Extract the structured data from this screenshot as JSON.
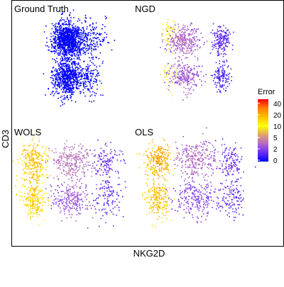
{
  "chart_data": {
    "type": "scatter",
    "xlabel": "NKG2D",
    "ylabel": "CD3",
    "panels": [
      {
        "title": "Ground Truth",
        "clusters": [
          {
            "x": 0.18,
            "y": 0.72,
            "n": 1000,
            "error": 0
          },
          {
            "x": 0.47,
            "y": 0.72,
            "n": 200,
            "error": 0
          },
          {
            "x": 0.18,
            "y": 0.26,
            "n": 700,
            "error": 0
          },
          {
            "x": 0.47,
            "y": 0.25,
            "n": 150,
            "error": 0
          }
        ]
      },
      {
        "title": "NGD",
        "clusters": [
          {
            "x": 0.12,
            "y": 0.78,
            "n": 60,
            "error": 14
          },
          {
            "x": 0.28,
            "y": 0.7,
            "n": 300,
            "error": 2.5
          },
          {
            "x": 0.72,
            "y": 0.7,
            "n": 180,
            "error": 0.8
          },
          {
            "x": 0.1,
            "y": 0.3,
            "n": 40,
            "error": 9
          },
          {
            "x": 0.3,
            "y": 0.28,
            "n": 220,
            "error": 2
          },
          {
            "x": 0.72,
            "y": 0.27,
            "n": 130,
            "error": 0.6
          }
        ]
      },
      {
        "title": "WOLS",
        "clusters": [
          {
            "x": 0.12,
            "y": 0.72,
            "n": 260,
            "error": 18
          },
          {
            "x": 0.48,
            "y": 0.72,
            "n": 260,
            "error": 3
          },
          {
            "x": 0.82,
            "y": 0.72,
            "n": 130,
            "error": 1
          },
          {
            "x": 0.12,
            "y": 0.28,
            "n": 220,
            "error": 16
          },
          {
            "x": 0.48,
            "y": 0.28,
            "n": 240,
            "error": 2
          },
          {
            "x": 0.82,
            "y": 0.28,
            "n": 110,
            "error": 0.8
          }
        ]
      },
      {
        "title": "OLS",
        "clusters": [
          {
            "x": 0.12,
            "y": 0.72,
            "n": 260,
            "error": 22
          },
          {
            "x": 0.48,
            "y": 0.75,
            "n": 260,
            "error": 2.5
          },
          {
            "x": 0.82,
            "y": 0.72,
            "n": 130,
            "error": 1
          },
          {
            "x": 0.12,
            "y": 0.28,
            "n": 220,
            "error": 18
          },
          {
            "x": 0.48,
            "y": 0.28,
            "n": 240,
            "error": 1.5
          },
          {
            "x": 0.82,
            "y": 0.28,
            "n": 110,
            "error": 0.8
          }
        ]
      }
    ],
    "legend": {
      "title": "Error",
      "ticks": [
        40,
        20,
        10,
        5,
        2,
        0
      ],
      "placement": "right",
      "colors": [
        "#0000ff",
        "#6a2cf5",
        "#b468c8",
        "#e0a070",
        "#ffff00",
        "#ffc000",
        "#ff8000",
        "#ff0000"
      ]
    }
  }
}
